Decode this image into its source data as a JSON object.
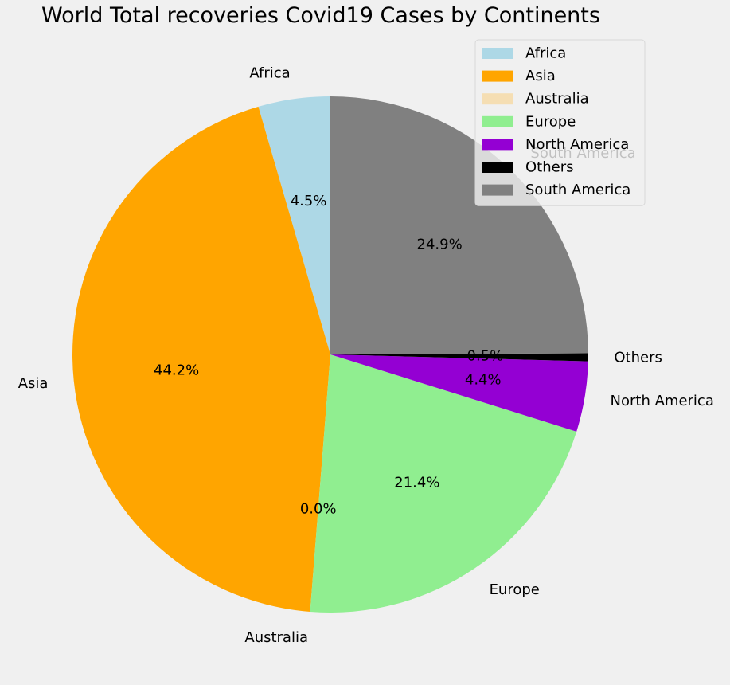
{
  "chart_data": {
    "type": "pie",
    "title": "World Total recoveries Covid19 Cases by Continents",
    "categories": [
      "Africa",
      "Asia",
      "Australia",
      "Europe",
      "North America",
      "Others",
      "South America"
    ],
    "values": [
      4.5,
      44.2,
      0.0,
      21.4,
      4.4,
      0.5,
      24.9
    ],
    "value_labels": [
      "4.5%",
      "44.2%",
      "0.0%",
      "21.4%",
      "4.4%",
      "0.5%",
      "24.9%"
    ],
    "colors": [
      "#add8e6",
      "#ffa500",
      "#f5deb3",
      "#90ee90",
      "#9400d3",
      "#000000",
      "#808080"
    ],
    "start_angle_deg": 90,
    "direction": "counterclockwise",
    "legend_position": "top-right"
  }
}
